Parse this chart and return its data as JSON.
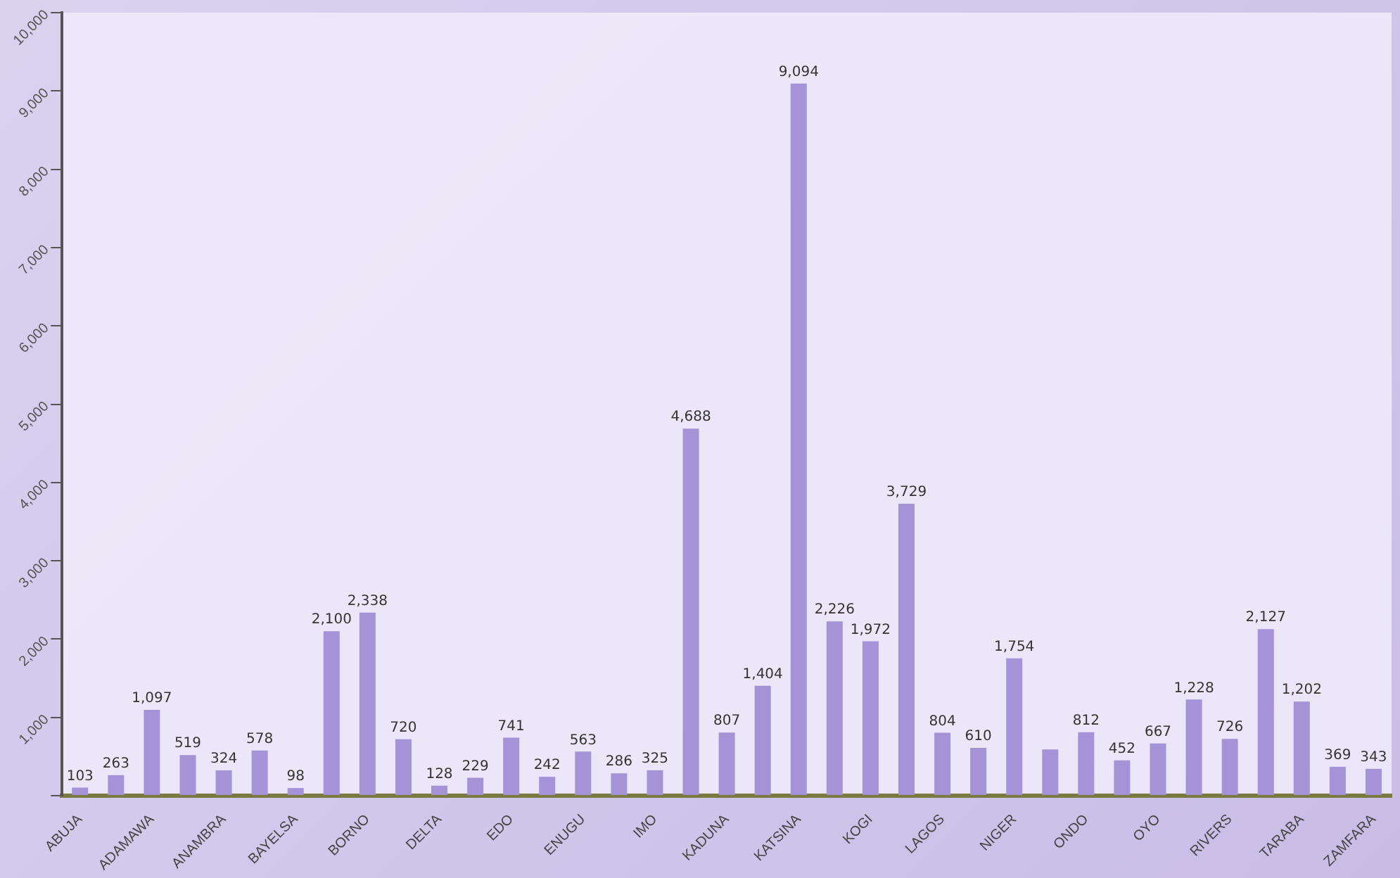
{
  "chart_data": {
    "type": "bar",
    "categories": [
      "ABUJA",
      null,
      "ADAMAWA",
      null,
      "ANAMBRA",
      null,
      "BAYELSA",
      null,
      "BORNO",
      null,
      "DELTA",
      null,
      "EDO",
      null,
      "ENUGU",
      null,
      "IMO",
      null,
      "KADUNA",
      null,
      "KATSINA",
      null,
      "KOGI",
      null,
      "LAGOS",
      null,
      "NIGER",
      null,
      "ONDO",
      null,
      "OYO",
      null,
      "RIVERS",
      null,
      "TARABA",
      null,
      "ZAMFARA"
    ],
    "values": [
      103,
      263,
      1097,
      519,
      324,
      578,
      98,
      2100,
      2338,
      720,
      128,
      229,
      741,
      242,
      563,
      286,
      325,
      4688,
      807,
      1404,
      9094,
      2226,
      1972,
      3729,
      804,
      610,
      1754,
      590,
      812,
      452,
      667,
      1228,
      726,
      2127,
      1202,
      369,
      343
    ],
    "value_labels": [
      "103",
      "263",
      "1,097",
      "519",
      "324",
      "578",
      "98",
      "2,100",
      "2,338",
      "720",
      "128",
      "229",
      "741",
      "242",
      "563",
      "286",
      "325",
      "4,688",
      "807",
      "1,404",
      "9,094",
      "2,226",
      "1,972",
      "3,729",
      "804",
      "610",
      "1,754",
      null,
      "812",
      "452",
      "667",
      "1,228",
      "726",
      "2,127",
      "1,202",
      "369",
      "343"
    ],
    "color": "#a493d6",
    "ylim": [
      0,
      10000
    ],
    "yticks": [
      {
        "value": 0,
        "label": null
      },
      "1,000",
      "2,000",
      "3,000",
      "4,000",
      "5,000",
      "6,000",
      "7,000",
      "8,000",
      "9,000",
      "10,000"
    ],
    "grid": false
  }
}
